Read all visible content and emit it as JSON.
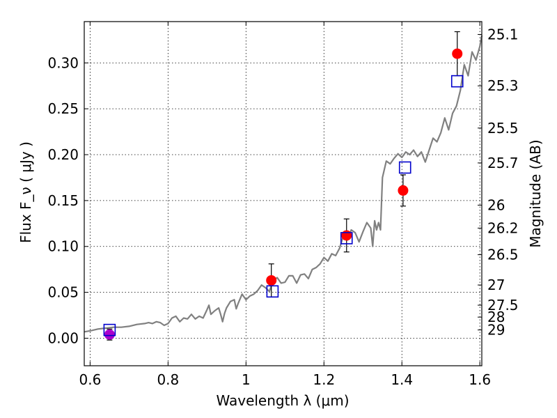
{
  "chart_data": {
    "type": "scatter",
    "xlabel": "Wavelength  λ (μm)",
    "ylabel": "Flux  F_ν  ( μJy )",
    "y2label": "Magnitude (AB)",
    "xlim": [
      0.585,
      1.605
    ],
    "ylim": [
      -0.03,
      0.345
    ],
    "grid": true,
    "x_ticks": [
      {
        "value": 0.6,
        "label": "0.6"
      },
      {
        "value": 0.8,
        "label": "0.8"
      },
      {
        "value": 1.0,
        "label": "1"
      },
      {
        "value": 1.2,
        "label": "1.2"
      },
      {
        "value": 1.4,
        "label": "1.4"
      },
      {
        "value": 1.6,
        "label": "1.6"
      }
    ],
    "y_ticks": [
      {
        "value": 0.0,
        "label": "0.00"
      },
      {
        "value": 0.05,
        "label": "0.05"
      },
      {
        "value": 0.1,
        "label": "0.10"
      },
      {
        "value": 0.15,
        "label": "0.15"
      },
      {
        "value": 0.2,
        "label": "0.20"
      },
      {
        "value": 0.25,
        "label": "0.25"
      },
      {
        "value": 0.3,
        "label": "0.30"
      }
    ],
    "mag_ticks": [
      {
        "flux": 0.331,
        "label": "25.1"
      },
      {
        "flux": 0.275,
        "label": "25.3"
      },
      {
        "flux": 0.229,
        "label": "25.5"
      },
      {
        "flux": 0.191,
        "label": "25.7"
      },
      {
        "flux": 0.145,
        "label": "26"
      },
      {
        "flux": 0.12,
        "label": "26.2"
      },
      {
        "flux": 0.091,
        "label": "26.5"
      },
      {
        "flux": 0.058,
        "label": "27"
      },
      {
        "flux": 0.036,
        "label": "27.5"
      },
      {
        "flux": 0.023,
        "label": "28"
      },
      {
        "flux": 0.009,
        "label": "29"
      }
    ],
    "spectrum": {
      "color": "#808080",
      "x": [
        0.585,
        0.6,
        0.62,
        0.64,
        0.66,
        0.68,
        0.7,
        0.72,
        0.74,
        0.75,
        0.76,
        0.77,
        0.78,
        0.79,
        0.8,
        0.81,
        0.82,
        0.83,
        0.84,
        0.85,
        0.86,
        0.87,
        0.88,
        0.89,
        0.9,
        0.905,
        0.91,
        0.92,
        0.93,
        0.935,
        0.94,
        0.945,
        0.95,
        0.96,
        0.97,
        0.975,
        0.98,
        0.99,
        1.0,
        1.01,
        1.02,
        1.03,
        1.04,
        1.05,
        1.06,
        1.07,
        1.08,
        1.09,
        1.1,
        1.11,
        1.12,
        1.13,
        1.14,
        1.15,
        1.16,
        1.17,
        1.18,
        1.19,
        1.2,
        1.21,
        1.22,
        1.23,
        1.24,
        1.25,
        1.26,
        1.27,
        1.28,
        1.29,
        1.3,
        1.31,
        1.32,
        1.325,
        1.33,
        1.335,
        1.34,
        1.345,
        1.35,
        1.36,
        1.37,
        1.38,
        1.39,
        1.4,
        1.41,
        1.42,
        1.43,
        1.44,
        1.45,
        1.46,
        1.47,
        1.48,
        1.49,
        1.5,
        1.51,
        1.52,
        1.53,
        1.54,
        1.55,
        1.56,
        1.57,
        1.58,
        1.59,
        1.6,
        1.605
      ],
      "y": [
        0.007,
        0.008,
        0.01,
        0.011,
        0.012,
        0.012,
        0.013,
        0.015,
        0.016,
        0.017,
        0.016,
        0.018,
        0.017,
        0.014,
        0.016,
        0.022,
        0.024,
        0.018,
        0.022,
        0.021,
        0.026,
        0.021,
        0.024,
        0.022,
        0.031,
        0.036,
        0.026,
        0.03,
        0.033,
        0.026,
        0.018,
        0.027,
        0.033,
        0.04,
        0.042,
        0.032,
        0.038,
        0.048,
        0.042,
        0.046,
        0.048,
        0.052,
        0.058,
        0.055,
        0.051,
        0.063,
        0.066,
        0.06,
        0.061,
        0.068,
        0.068,
        0.06,
        0.069,
        0.07,
        0.065,
        0.075,
        0.077,
        0.081,
        0.088,
        0.084,
        0.092,
        0.09,
        0.098,
        0.112,
        0.107,
        0.118,
        0.115,
        0.105,
        0.116,
        0.126,
        0.12,
        0.1,
        0.128,
        0.118,
        0.126,
        0.118,
        0.175,
        0.193,
        0.19,
        0.196,
        0.201,
        0.197,
        0.203,
        0.2,
        0.205,
        0.198,
        0.203,
        0.192,
        0.205,
        0.218,
        0.214,
        0.224,
        0.24,
        0.227,
        0.245,
        0.253,
        0.27,
        0.298,
        0.286,
        0.312,
        0.303,
        0.318,
        0.33
      ]
    },
    "series": [
      {
        "marker": "circle",
        "color": "#ff0000",
        "x": [
          1.065,
          1.258,
          1.403,
          1.542
        ],
        "y": [
          0.063,
          0.112,
          0.161,
          0.31
        ],
        "yerr": [
          0.018,
          0.018,
          0.017,
          0.024
        ]
      },
      {
        "marker": "circle",
        "color": "#aa00cc",
        "x": [
          0.65
        ],
        "y": [
          0.004
        ],
        "yerr": [
          0.006
        ]
      },
      {
        "marker": "square",
        "color": "#0000cc",
        "x": [
          0.65,
          1.068,
          1.258,
          1.408,
          1.542
        ],
        "y": [
          0.009,
          0.051,
          0.109,
          0.186,
          0.28
        ]
      }
    ]
  }
}
